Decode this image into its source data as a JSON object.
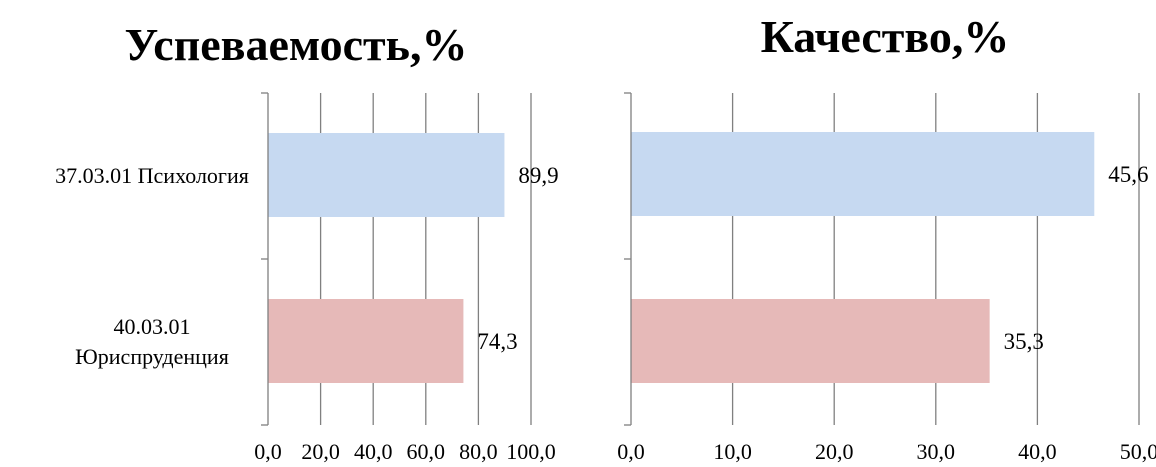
{
  "chart_data": [
    {
      "type": "bar",
      "orientation": "horizontal",
      "title": "Успеваемость,%",
      "categories": [
        "37.03.01 Психология",
        "40.03.01 Юриспруденция"
      ],
      "category_lines": [
        [
          "37.03.01 Психология"
        ],
        [
          "40.03.01",
          "Юриспруденция"
        ]
      ],
      "values": [
        89.9,
        74.3
      ],
      "value_labels": [
        "89,9",
        "74,3"
      ],
      "colors": [
        "#c6d9f1",
        "#e6b9b8"
      ],
      "xlim": [
        0,
        100
      ],
      "xticks": [
        0,
        20,
        40,
        60,
        80,
        100
      ],
      "xtick_labels": [
        "0,0",
        "20,0",
        "40,0",
        "60,0",
        "80,0",
        "100,0"
      ],
      "grid": true
    },
    {
      "type": "bar",
      "orientation": "horizontal",
      "title": "Качество,%",
      "categories": [
        "37.03.01 Психология",
        "40.03.01 Юриспруденция"
      ],
      "values": [
        45.6,
        35.3
      ],
      "value_labels": [
        "45,6",
        "35,3"
      ],
      "colors": [
        "#c6d9f1",
        "#e6b9b8"
      ],
      "xlim": [
        0,
        50
      ],
      "xticks": [
        0,
        10,
        20,
        30,
        40,
        50
      ],
      "xtick_labels": [
        "0,0",
        "10,0",
        "20,0",
        "30,0",
        "40,0",
        "50,0"
      ],
      "grid": true
    }
  ]
}
